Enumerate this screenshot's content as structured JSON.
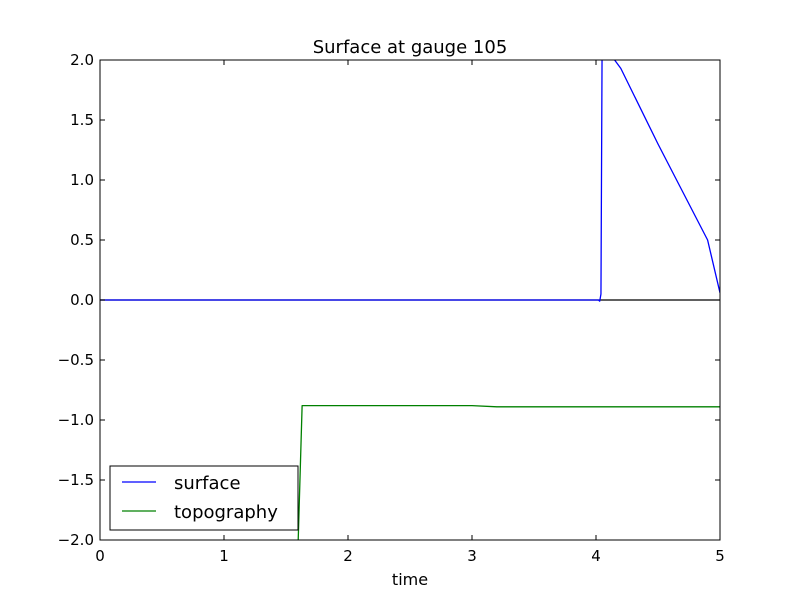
{
  "chart_data": {
    "type": "line",
    "title": "Surface at gauge 105",
    "xlabel": "time",
    "ylabel": "",
    "xlim": [
      0,
      5
    ],
    "ylim": [
      -2.0,
      2.0
    ],
    "x_ticks": [
      "0",
      "1",
      "2",
      "3",
      "4",
      "5"
    ],
    "y_ticks": [
      "−2.0",
      "−1.5",
      "−1.0",
      "−0.5",
      "0.0",
      "0.5",
      "1.0",
      "1.5",
      "2.0"
    ],
    "grid": false,
    "legend_position": "lower-left",
    "reference_line_y": 0.0,
    "series": [
      {
        "name": "surface",
        "color": "#0000ff",
        "x": [
          0,
          1,
          2,
          3,
          4.0,
          4.02,
          4.03,
          4.04,
          4.05,
          4.1,
          4.15,
          4.2,
          4.3,
          4.5,
          4.7,
          4.9,
          5.0
        ],
        "y": [
          0,
          0,
          0,
          0,
          0,
          0,
          -0.01,
          0.05,
          2.3,
          2.2,
          2.0,
          1.93,
          1.72,
          1.3,
          0.9,
          0.5,
          0.06
        ]
      },
      {
        "name": "topography",
        "color": "#008000",
        "x": [
          1.59,
          1.63,
          2.0,
          3.0,
          3.2,
          4.0,
          5.0
        ],
        "y": [
          -2.3,
          -0.88,
          -0.88,
          -0.88,
          -0.89,
          -0.89,
          -0.89
        ]
      }
    ]
  }
}
